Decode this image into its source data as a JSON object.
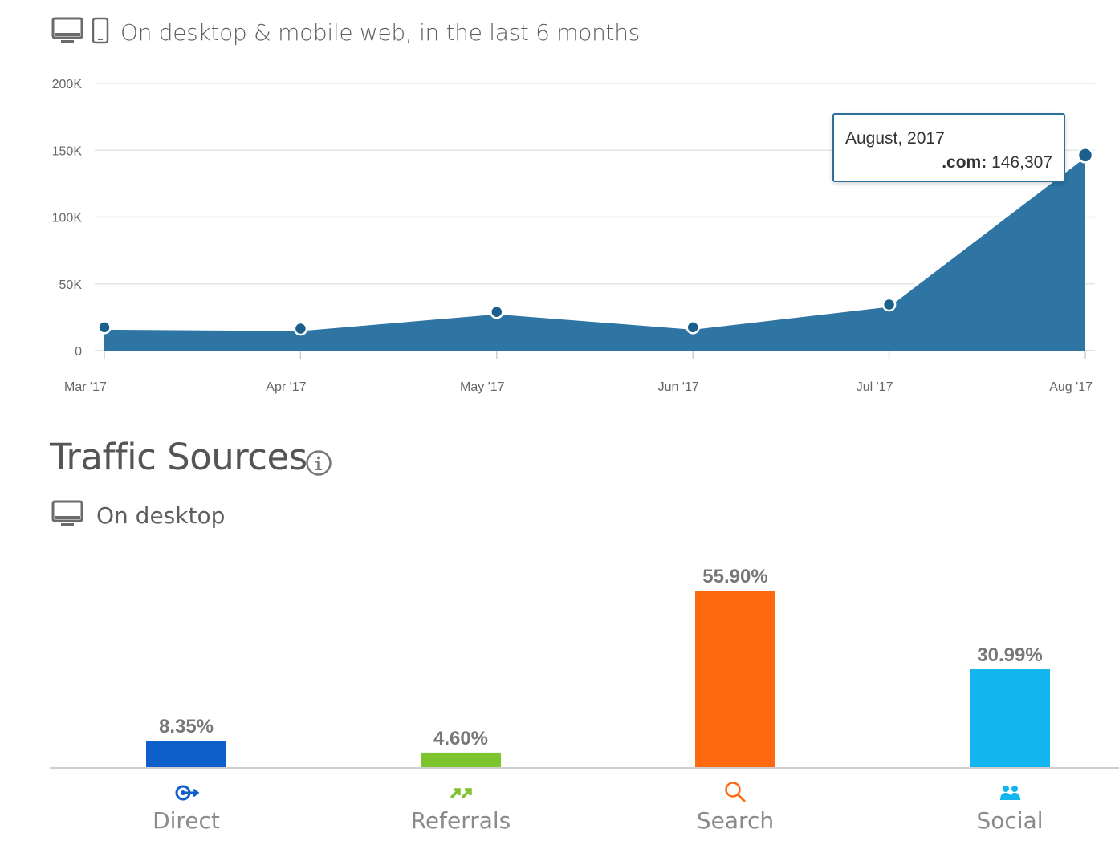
{
  "visits_header": {
    "text": "On desktop & mobile web, in the last 6 months",
    "icons": [
      "desktop-icon",
      "mobile-icon"
    ]
  },
  "tooltip": {
    "date": "August, 2017",
    "series_label": ".com:",
    "value": "146,307"
  },
  "traffic_sources": {
    "title": "Traffic Sources",
    "info_icon": "info-icon",
    "subheader": "On desktop",
    "subheader_icon": "desktop-icon"
  },
  "colors": {
    "area": "#2e75a3",
    "line": "#ffffff",
    "point": "#1b5f8c",
    "gridline": "#e5e5e5",
    "direct": "#0e5fc9",
    "referrals": "#7dc42e",
    "search": "#ff6a10",
    "social": "#13b5ee"
  },
  "chart_data": [
    {
      "type": "area",
      "categories": [
        "Mar '17",
        "Apr '17",
        "May '17",
        "Jun '17",
        "Jul '17",
        "Aug '17"
      ],
      "series": [
        {
          "name": ".com",
          "values": [
            17500,
            16500,
            29000,
            17500,
            34500,
            146307
          ]
        }
      ],
      "y_ticks": [
        "0",
        "50K",
        "100K",
        "150K",
        "200K"
      ],
      "ylim": [
        0,
        200000
      ],
      "grid": true
    },
    {
      "type": "bar",
      "categories": [
        "Direct",
        "Referrals",
        "Search",
        "Social"
      ],
      "values": [
        8.35,
        4.6,
        55.9,
        30.99
      ],
      "value_labels": [
        "8.35%",
        "4.60%",
        "55.90%",
        "30.99%"
      ],
      "icons": [
        "direct-icon",
        "referrals-icon",
        "search-icon",
        "social-icon"
      ],
      "ylim": [
        0,
        55.9
      ]
    }
  ]
}
